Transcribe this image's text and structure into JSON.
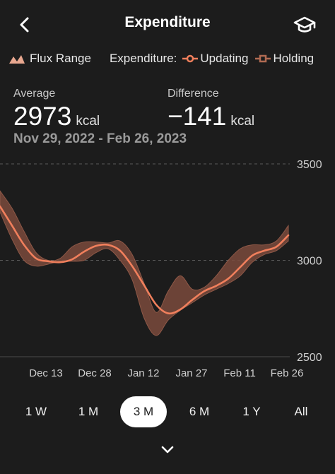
{
  "header": {
    "title": "Expenditure",
    "back_icon": "chevron-left-icon",
    "learn_icon": "graduation-cap-icon"
  },
  "legend": {
    "flux_label": "Flux Range",
    "expenditure_label": "Expenditure:",
    "updating_label": "Updating",
    "holding_label": "Holding",
    "colors": {
      "flux": "#e8a78f",
      "updating": "#f07f5c",
      "holding": "#b06a52"
    }
  },
  "stats": {
    "average": {
      "label": "Average",
      "value": "2973",
      "unit": "kcal"
    },
    "difference": {
      "label": "Difference",
      "value": "−141",
      "unit": "kcal"
    },
    "date_range": "Nov 29, 2022 - Feb 26, 2023"
  },
  "chart_data": {
    "type": "area",
    "y_ticks": [
      "3500",
      "3000",
      "2500"
    ],
    "x_ticks": [
      "Dec 13",
      "Dec 28",
      "Jan 12",
      "Jan 27",
      "Feb 11",
      "Feb 26"
    ],
    "ylim": [
      2500,
      3500
    ],
    "grid": "dashed",
    "series": [
      {
        "name": "Updating",
        "role": "line",
        "color": "#f07f5c",
        "values": [
          3280,
          3180,
          3080,
          3010,
          2995,
          2990,
          3005,
          3045,
          3075,
          3080,
          3050,
          2970,
          2870,
          2770,
          2725,
          2745,
          2795,
          2840,
          2868,
          2905,
          2965,
          3025,
          3050,
          3070,
          3130
        ]
      },
      {
        "name": "Flux upper",
        "role": "band-upper",
        "values": [
          3360,
          3270,
          3150,
          3040,
          3000,
          3010,
          3070,
          3095,
          3095,
          3090,
          3100,
          3030,
          2880,
          2730,
          2840,
          2920,
          2850,
          2860,
          2920,
          3000,
          3060,
          3080,
          3080,
          3100,
          3180
        ]
      },
      {
        "name": "Flux lower",
        "role": "band-lower",
        "values": [
          3250,
          3110,
          3000,
          2970,
          2980,
          2995,
          2995,
          3000,
          3040,
          3060,
          3000,
          2900,
          2700,
          2610,
          2690,
          2740,
          2780,
          2820,
          2850,
          2880,
          2920,
          2990,
          3030,
          3050,
          3100
        ]
      }
    ]
  },
  "ranges": {
    "items": [
      {
        "label": "1 W",
        "name": "range-1w"
      },
      {
        "label": "1 M",
        "name": "range-1m"
      },
      {
        "label": "3 M",
        "name": "range-3m"
      },
      {
        "label": "6 M",
        "name": "range-6m"
      },
      {
        "label": "1 Y",
        "name": "range-1y"
      },
      {
        "label": "All",
        "name": "range-all"
      }
    ],
    "selected": "3 M"
  },
  "footer": {
    "expand_icon": "chevron-down-icon"
  }
}
